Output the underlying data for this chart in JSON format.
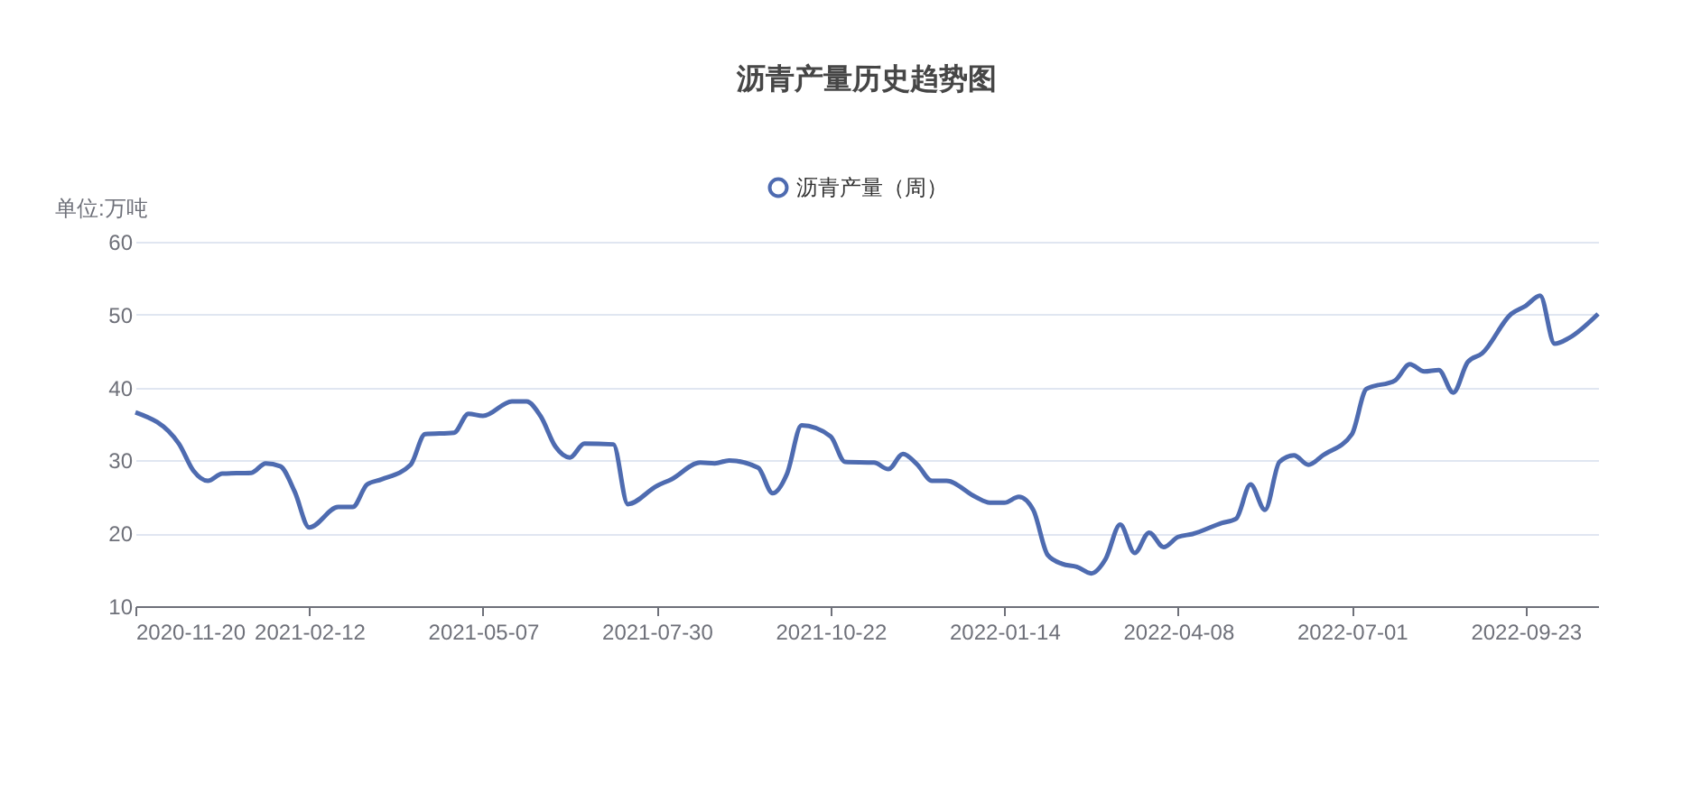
{
  "chart_data": {
    "type": "line",
    "title": "沥青产量历史趋势图",
    "ylabel": "单位:万吨",
    "x": [
      "2020-11-20",
      "2020-12-11",
      "2020-12-18",
      "2020-12-25",
      "2021-01-01",
      "2021-01-15",
      "2021-01-22",
      "2021-01-29",
      "2021-02-05",
      "2021-02-12",
      "2021-02-26",
      "2021-03-05",
      "2021-03-12",
      "2021-03-19",
      "2021-04-02",
      "2021-04-09",
      "2021-04-23",
      "2021-04-30",
      "2021-05-07",
      "2021-05-21",
      "2021-05-28",
      "2021-06-04",
      "2021-06-11",
      "2021-06-18",
      "2021-06-25",
      "2021-07-09",
      "2021-07-16",
      "2021-07-30",
      "2021-08-06",
      "2021-08-20",
      "2021-08-27",
      "2021-09-03",
      "2021-09-17",
      "2021-09-24",
      "2021-10-01",
      "2021-10-08",
      "2021-10-22",
      "2021-10-29",
      "2021-11-12",
      "2021-11-19",
      "2021-11-26",
      "2021-12-03",
      "2021-12-10",
      "2021-12-17",
      "2021-12-31",
      "2022-01-07",
      "2022-01-14",
      "2022-01-21",
      "2022-01-28",
      "2022-02-04",
      "2022-02-11",
      "2022-02-18",
      "2022-02-25",
      "2022-03-04",
      "2022-03-11",
      "2022-03-18",
      "2022-03-25",
      "2022-04-01",
      "2022-04-08",
      "2022-04-15",
      "2022-04-29",
      "2022-05-06",
      "2022-05-13",
      "2022-05-20",
      "2022-05-27",
      "2022-06-03",
      "2022-06-10",
      "2022-06-17",
      "2022-07-01",
      "2022-07-08",
      "2022-07-22",
      "2022-07-29",
      "2022-08-05",
      "2022-08-12",
      "2022-08-19",
      "2022-08-26",
      "2022-09-02",
      "2022-09-16",
      "2022-09-23",
      "2022-09-30",
      "2022-10-07",
      "2022-10-14",
      "2022-10-28"
    ],
    "series": [
      {
        "name": "沥青产量（周）",
        "color": "#4e6bb0",
        "values": [
          36.6,
          32.3,
          28.6,
          27.2,
          28.2,
          28.3,
          29.6,
          29.2,
          25.7,
          20.8,
          23.6,
          23.6,
          26.7,
          27.4,
          29.4,
          33.6,
          33.8,
          36.4,
          36.1,
          38.1,
          38.1,
          36.0,
          31.9,
          30.4,
          32.3,
          32.2,
          24.0,
          26.5,
          27.4,
          29.7,
          29.6,
          30.0,
          29.0,
          25.5,
          28.2,
          34.8,
          33.3,
          29.8,
          29.7,
          28.8,
          30.9,
          29.4,
          27.2,
          27.2,
          25.0,
          24.2,
          24.2,
          25.0,
          23.2,
          17.0,
          15.8,
          15.4,
          14.5,
          16.5,
          21.2,
          17.3,
          20.1,
          18.1,
          19.5,
          19.9,
          21.4,
          22.0,
          26.7,
          23.2,
          29.8,
          30.7,
          29.4,
          30.7,
          33.6,
          39.8,
          41.0,
          43.2,
          42.2,
          42.4,
          39.3,
          43.5,
          44.7,
          50.1,
          51.2,
          52.6,
          46.0,
          46.8,
          50.1
        ]
      }
    ],
    "xlim": [
      "2020-11-20",
      "2022-10-28"
    ],
    "xticks": [
      "2020-11-20",
      "2021-02-12",
      "2021-05-07",
      "2021-07-30",
      "2021-10-22",
      "2022-01-14",
      "2022-04-08",
      "2022-07-01",
      "2022-09-23"
    ],
    "ylim": [
      10,
      60
    ],
    "yticks": [
      10,
      20,
      30,
      40,
      50,
      60
    ],
    "grid": "y",
    "legend": "top",
    "marker": "none",
    "line_style": "solid"
  }
}
